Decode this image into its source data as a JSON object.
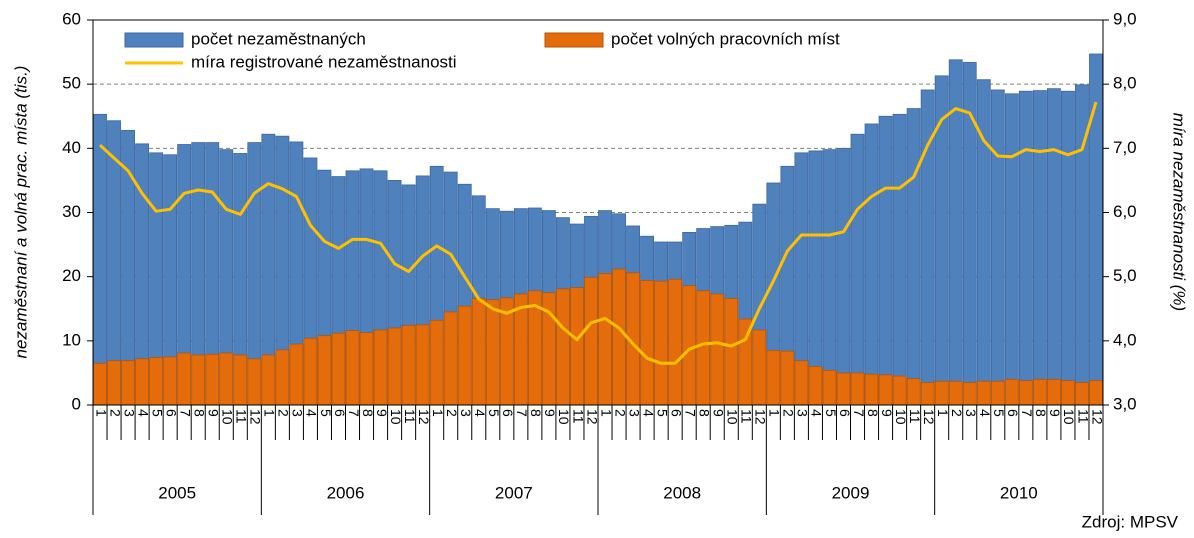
{
  "chart_data": {
    "type": "bar",
    "source": "Zdroj: MPSV",
    "ylabel": "nezaměstnaní a volná prac. místa (tis.)",
    "y2label": "míra nezaměstnanosti (%)",
    "categories": [
      "1",
      "2",
      "3",
      "4",
      "5",
      "6",
      "7",
      "8",
      "9",
      "10",
      "11",
      "12",
      "1",
      "2",
      "3",
      "4",
      "5",
      "6",
      "7",
      "8",
      "9",
      "10",
      "11",
      "12",
      "1",
      "2",
      "3",
      "4",
      "5",
      "6",
      "7",
      "8",
      "9",
      "10",
      "11",
      "12",
      "1",
      "2",
      "3",
      "4",
      "5",
      "6",
      "7",
      "8",
      "9",
      "10",
      "11",
      "12",
      "1",
      "2",
      "3",
      "4",
      "5",
      "6",
      "7",
      "8",
      "9",
      "10",
      "11",
      "12",
      "1",
      "2",
      "3",
      "4",
      "5",
      "6",
      "7",
      "8",
      "9",
      "10",
      "11",
      "12"
    ],
    "years": [
      "2005",
      "2006",
      "2007",
      "2008",
      "2009",
      "2010"
    ],
    "series": [
      {
        "name": "počet nezaměstnaných",
        "type": "bar",
        "color": "#4f81bd",
        "values": [
          45.3,
          44.3,
          42.8,
          40.7,
          39.3,
          39.0,
          40.6,
          40.9,
          40.9,
          39.8,
          39.2,
          40.9,
          42.2,
          41.9,
          41.0,
          38.5,
          36.6,
          35.6,
          36.5,
          36.8,
          36.5,
          35.0,
          34.3,
          35.7,
          37.2,
          36.3,
          34.4,
          32.6,
          30.6,
          30.2,
          30.6,
          30.7,
          30.3,
          29.2,
          28.2,
          29.4,
          30.3,
          29.8,
          27.9,
          26.3,
          25.4,
          25.4,
          26.9,
          27.5,
          27.8,
          28.0,
          28.5,
          31.3,
          34.6,
          37.2,
          39.3,
          39.6,
          39.8,
          40.0,
          42.2,
          43.8,
          45.0,
          45.3,
          46.2,
          49.1,
          51.3,
          53.8,
          53.4,
          50.7,
          49.1,
          48.5,
          48.9,
          49.0,
          49.3,
          48.9,
          49.9,
          54.7
        ]
      },
      {
        "name": "počet volných pracovních míst",
        "type": "bar",
        "color": "#e46c0a",
        "values": [
          6.5,
          6.9,
          6.9,
          7.2,
          7.4,
          7.5,
          8.1,
          7.8,
          7.9,
          8.1,
          7.8,
          7.2,
          7.8,
          8.6,
          9.5,
          10.4,
          10.8,
          11.2,
          11.6,
          11.3,
          11.7,
          12.0,
          12.4,
          12.5,
          13.2,
          14.5,
          15.4,
          16.6,
          16.4,
          16.7,
          17.3,
          17.8,
          17.5,
          18.1,
          18.3,
          19.9,
          20.5,
          21.2,
          20.6,
          19.4,
          19.3,
          19.6,
          18.6,
          17.8,
          17.3,
          16.6,
          13.4,
          11.7,
          8.5,
          8.4,
          6.9,
          6.0,
          5.4,
          5.0,
          5.0,
          4.8,
          4.7,
          4.5,
          4.1,
          3.5,
          3.7,
          3.7,
          3.5,
          3.7,
          3.7,
          4.0,
          3.8,
          4.0,
          4.0,
          3.8,
          3.5,
          3.8
        ]
      },
      {
        "name": "míra registrované nezaměstnanosti",
        "type": "line",
        "axis": "y2",
        "color": "#ffc000",
        "values": [
          7.05,
          6.85,
          6.65,
          6.3,
          6.02,
          6.05,
          6.3,
          6.35,
          6.32,
          6.05,
          5.97,
          6.3,
          6.45,
          6.37,
          6.25,
          5.8,
          5.55,
          5.44,
          5.58,
          5.58,
          5.52,
          5.2,
          5.08,
          5.32,
          5.48,
          5.35,
          5.0,
          4.65,
          4.5,
          4.43,
          4.52,
          4.55,
          4.45,
          4.2,
          4.02,
          4.28,
          4.35,
          4.2,
          3.95,
          3.73,
          3.65,
          3.65,
          3.87,
          3.95,
          3.97,
          3.92,
          4.02,
          4.5,
          4.93,
          5.4,
          5.65,
          5.65,
          5.65,
          5.7,
          6.05,
          6.25,
          6.38,
          6.38,
          6.55,
          7.05,
          7.45,
          7.62,
          7.55,
          7.12,
          6.88,
          6.87,
          6.98,
          6.95,
          6.98,
          6.9,
          6.98,
          7.72
        ]
      }
    ],
    "ylim": [
      0,
      60
    ],
    "yticks": [
      0,
      10,
      20,
      30,
      40,
      50,
      60
    ],
    "y2lim": [
      3,
      9
    ],
    "y2ticks": [
      {
        "value": 3,
        "label": "3,0"
      },
      {
        "value": 4,
        "label": "4,0"
      },
      {
        "value": 5,
        "label": "5,0"
      },
      {
        "value": 6,
        "label": "6,0"
      },
      {
        "value": 7,
        "label": "7,0"
      },
      {
        "value": 8,
        "label": "8,0"
      },
      {
        "value": 9,
        "label": "9,0"
      }
    ],
    "grid": true,
    "legend": "top-left"
  }
}
